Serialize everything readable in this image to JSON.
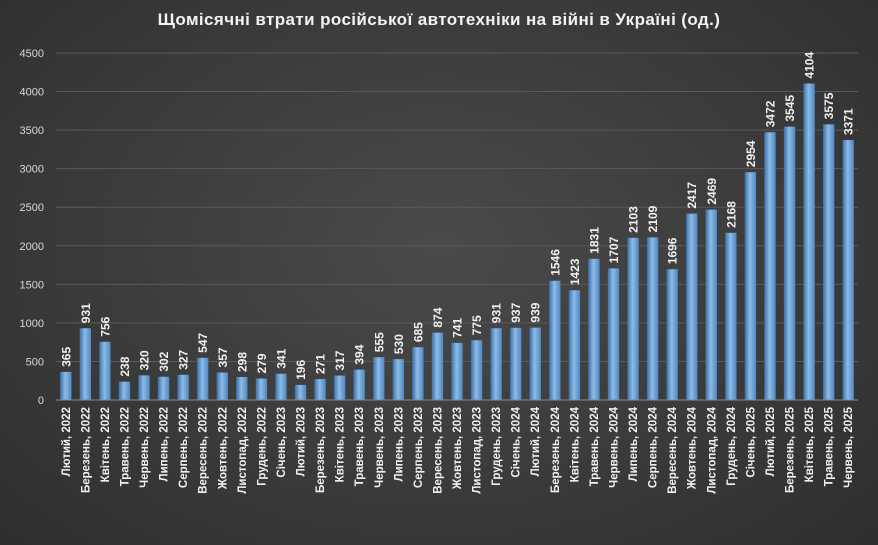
{
  "chart_data": {
    "type": "bar",
    "title": "Щомісячні втрати російської автотехніки на війні в Україні (од.)",
    "xlabel": "",
    "ylabel": "",
    "ylim": [
      0,
      4500
    ],
    "yticks": [
      0,
      500,
      1000,
      1500,
      2000,
      2500,
      3000,
      3500,
      4000,
      4500
    ],
    "grid": true,
    "categories": [
      "Лютий, 2022",
      "Березень, 2022",
      "Квітень, 2022",
      "Травень, 2022",
      "Червень, 2022",
      "Липень, 2022",
      "Серпень, 2022",
      "Вересень, 2022",
      "Жовтень, 2022",
      "Листопад, 2022",
      "Грудень, 2022",
      "Січень, 2023",
      "Лютий, 2023",
      "Березень, 2023",
      "Квітень, 2023",
      "Травень, 2023",
      "Червень, 2023",
      "Липень, 2023",
      "Серпень, 2023",
      "Вересень, 2023",
      "Жовтень, 2023",
      "Листопад, 2023",
      "Грудень, 2023",
      "Січень, 2024",
      "Лютий, 2024",
      "Березень, 2024",
      "Квітень, 2024",
      "Травень, 2024",
      "Червень, 2024",
      "Липень, 2024",
      "Серпень, 2024",
      "Вересень, 2024",
      "Жовтень, 2024",
      "Листопад, 2024",
      "Грудень, 2024",
      "Січень, 2025",
      "Лютий, 2025",
      "Березень, 2025",
      "Квітень, 2025",
      "Травень, 2025",
      "Червень, 2025"
    ],
    "values": [
      365,
      931,
      756,
      238,
      320,
      302,
      327,
      547,
      357,
      298,
      279,
      341,
      196,
      271,
      317,
      394,
      555,
      530,
      685,
      874,
      741,
      775,
      931,
      937,
      939,
      1546,
      1423,
      1831,
      1707,
      2103,
      2109,
      1696,
      2417,
      2469,
      2168,
      2954,
      3472,
      3545,
      4104,
      3575,
      3371
    ],
    "colors": {
      "bar": "#5b9bd5",
      "bar_light": "#8dbbe6",
      "bar_dark": "#3a6fa8",
      "grid": "#5a5a5a",
      "text": "#f0f0f0"
    }
  }
}
